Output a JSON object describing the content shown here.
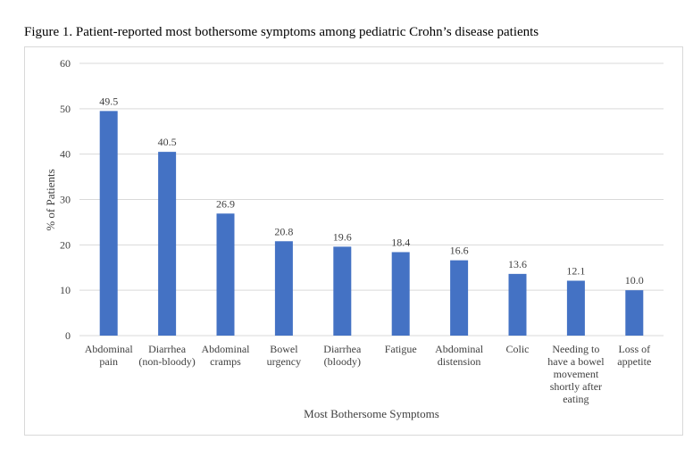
{
  "figure": {
    "title": "Figure 1. Patient-reported most bothersome symptoms among pediatric Crohn’s disease patients"
  },
  "colors": {
    "bar": "#4472c4",
    "grid": "#d9d9d9",
    "text": "#404040",
    "frame": "#d9d9d9"
  },
  "chart_data": {
    "type": "bar",
    "title": "",
    "xlabel": "Most Bothersome Symptoms",
    "ylabel": "% of Patients",
    "ylim": [
      0,
      60
    ],
    "yticks": [
      0,
      10,
      20,
      30,
      40,
      50,
      60
    ],
    "grid": true,
    "legend": "none",
    "categories": [
      [
        "Abdominal",
        "pain"
      ],
      [
        "Diarrhea",
        "(non-bloody)"
      ],
      [
        "Abdominal",
        "cramps"
      ],
      [
        "Bowel",
        "urgency"
      ],
      [
        "Diarrhea",
        "(bloody)"
      ],
      [
        "Fatigue"
      ],
      [
        "Abdominal",
        "distension"
      ],
      [
        "Colic"
      ],
      [
        "Needing to",
        "have a bowel",
        "movement",
        "shortly after",
        "eating"
      ],
      [
        "Loss of",
        "appetite"
      ]
    ],
    "values": [
      49.5,
      40.5,
      26.9,
      20.8,
      19.6,
      18.4,
      16.6,
      13.6,
      12.1,
      10.0
    ],
    "data_labels": [
      "49.5",
      "40.5",
      "26.9",
      "20.8",
      "19.6",
      "18.4",
      "16.6",
      "13.6",
      "12.1",
      "10.0"
    ]
  }
}
